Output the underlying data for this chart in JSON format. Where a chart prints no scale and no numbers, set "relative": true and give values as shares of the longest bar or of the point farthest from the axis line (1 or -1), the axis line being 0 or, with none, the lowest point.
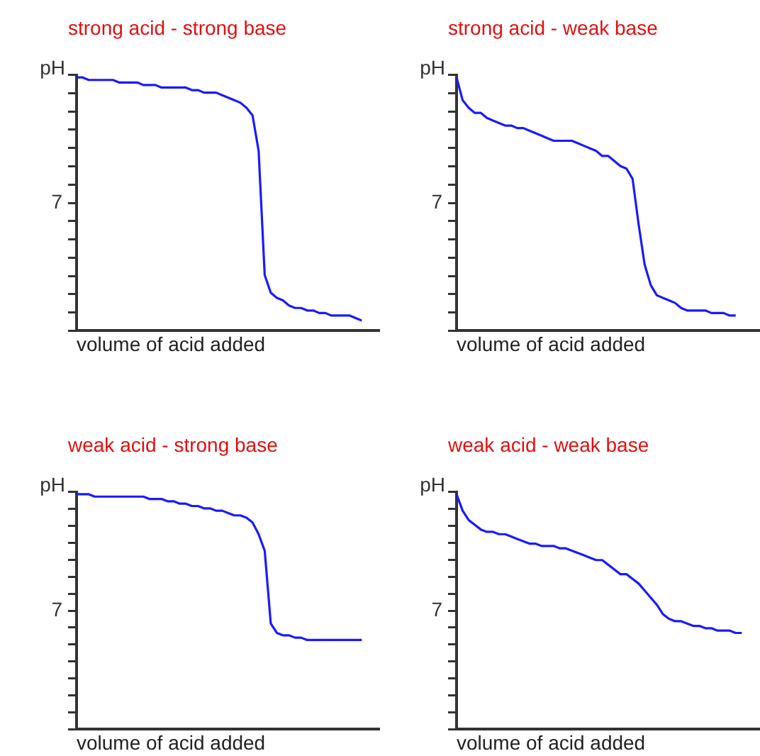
{
  "chart_data": [
    {
      "type": "line",
      "title": "strong acid - strong base",
      "xlabel": "volume of acid added",
      "ylabel": "pH",
      "relative": true,
      "tick_labels": false,
      "annotations": [
        "7"
      ],
      "categories": [
        null,
        null,
        null,
        null,
        null,
        null,
        null,
        null,
        null,
        null,
        null,
        null,
        null,
        null,
        null,
        null,
        null,
        null,
        null,
        null,
        null,
        null,
        null,
        null,
        null,
        null,
        null,
        null,
        null,
        null,
        null,
        null,
        null,
        null,
        null,
        null,
        null,
        null,
        null,
        null,
        null,
        null,
        null,
        null,
        null,
        null,
        null,
        null,
        null,
        null,
        null
      ],
      "series": [
        {
          "color": "#1a1aff",
          "values": [
            1,
            1,
            0.99,
            0.99,
            0.99,
            0.99,
            0.99,
            0.98,
            0.98,
            0.98,
            0.98,
            0.97,
            0.97,
            0.97,
            0.96,
            0.96,
            0.96,
            0.96,
            0.96,
            0.95,
            0.95,
            0.94,
            0.94,
            0.94,
            0.93,
            0.92,
            0.91,
            0.9,
            0.88,
            0.85,
            0.71,
            0.22,
            0.15,
            0.13,
            0.12,
            0.1,
            0.09,
            0.09,
            0.08,
            0.08,
            0.07,
            0.07,
            0.06,
            0.06,
            0.06,
            0.06,
            0.05,
            0.04,
            null,
            null,
            null
          ]
        }
      ]
    },
    {
      "type": "line",
      "title": "strong acid - weak base",
      "xlabel": "volume of acid added",
      "ylabel": "pH",
      "relative": true,
      "tick_labels": false,
      "annotations": [
        "7"
      ],
      "categories": [
        null,
        null,
        null,
        null,
        null,
        null,
        null,
        null,
        null,
        null,
        null,
        null,
        null,
        null,
        null,
        null,
        null,
        null,
        null,
        null,
        null,
        null,
        null,
        null,
        null,
        null,
        null,
        null,
        null,
        null,
        null,
        null,
        null,
        null,
        null,
        null,
        null,
        null,
        null,
        null,
        null,
        null,
        null,
        null,
        null,
        null,
        null,
        null,
        null,
        null,
        null
      ],
      "series": [
        {
          "color": "#1a1aff",
          "values": [
            1,
            0.91,
            0.88,
            0.86,
            0.86,
            0.84,
            0.83,
            0.82,
            0.81,
            0.81,
            0.8,
            0.8,
            0.79,
            0.78,
            0.77,
            0.76,
            0.75,
            0.75,
            0.75,
            0.75,
            0.74,
            0.73,
            0.72,
            0.71,
            0.69,
            0.69,
            0.67,
            0.65,
            0.64,
            0.6,
            0.42,
            0.26,
            0.18,
            0.14,
            0.13,
            0.12,
            0.11,
            0.09,
            0.08,
            0.08,
            0.08,
            0.08,
            0.07,
            0.07,
            0.07,
            0.06,
            0.06,
            null,
            null,
            null,
            null
          ]
        }
      ]
    },
    {
      "type": "line",
      "title": "weak acid - strong base",
      "xlabel": "volume of acid added",
      "ylabel": "pH",
      "relative": true,
      "tick_labels": false,
      "annotations": [
        "7"
      ],
      "categories": [
        null,
        null,
        null,
        null,
        null,
        null,
        null,
        null,
        null,
        null,
        null,
        null,
        null,
        null,
        null,
        null,
        null,
        null,
        null,
        null,
        null,
        null,
        null,
        null,
        null,
        null,
        null,
        null,
        null,
        null,
        null,
        null,
        null,
        null,
        null,
        null,
        null,
        null,
        null,
        null,
        null,
        null,
        null,
        null,
        null,
        null,
        null,
        null,
        null,
        null,
        null
      ],
      "series": [
        {
          "color": "#1a1aff",
          "values": [
            1,
            1,
            1,
            0.99,
            0.99,
            0.99,
            0.99,
            0.99,
            0.99,
            0.99,
            0.99,
            0.99,
            0.98,
            0.98,
            0.98,
            0.97,
            0.97,
            0.96,
            0.96,
            0.95,
            0.95,
            0.94,
            0.94,
            0.93,
            0.93,
            0.92,
            0.91,
            0.91,
            0.9,
            0.88,
            0.83,
            0.76,
            0.45,
            0.41,
            0.4,
            0.4,
            0.39,
            0.39,
            0.38,
            0.38,
            0.38,
            0.38,
            0.38,
            0.38,
            0.38,
            0.38,
            0.38,
            0.38,
            null,
            null,
            null
          ]
        }
      ]
    },
    {
      "type": "line",
      "title": "weak acid - weak base",
      "xlabel": "volume of acid added",
      "ylabel": "pH",
      "relative": true,
      "tick_labels": false,
      "annotations": [
        "7"
      ],
      "categories": [
        null,
        null,
        null,
        null,
        null,
        null,
        null,
        null,
        null,
        null,
        null,
        null,
        null,
        null,
        null,
        null,
        null,
        null,
        null,
        null,
        null,
        null,
        null,
        null,
        null,
        null,
        null,
        null,
        null,
        null,
        null,
        null,
        null,
        null,
        null,
        null,
        null,
        null,
        null,
        null,
        null,
        null,
        null,
        null,
        null,
        null,
        null,
        null,
        null,
        null,
        null
      ],
      "series": [
        {
          "color": "#1a1aff",
          "values": [
            1,
            0.93,
            0.89,
            0.87,
            0.85,
            0.84,
            0.84,
            0.83,
            0.83,
            0.82,
            0.81,
            0.8,
            0.79,
            0.79,
            0.78,
            0.78,
            0.78,
            0.77,
            0.77,
            0.76,
            0.75,
            0.74,
            0.73,
            0.72,
            0.72,
            0.7,
            0.68,
            0.66,
            0.66,
            0.64,
            0.62,
            0.59,
            0.56,
            0.53,
            0.49,
            0.47,
            0.46,
            0.46,
            0.45,
            0.44,
            0.44,
            0.43,
            0.43,
            0.42,
            0.42,
            0.42,
            0.41,
            0.41,
            null,
            null,
            null
          ]
        }
      ]
    }
  ]
}
